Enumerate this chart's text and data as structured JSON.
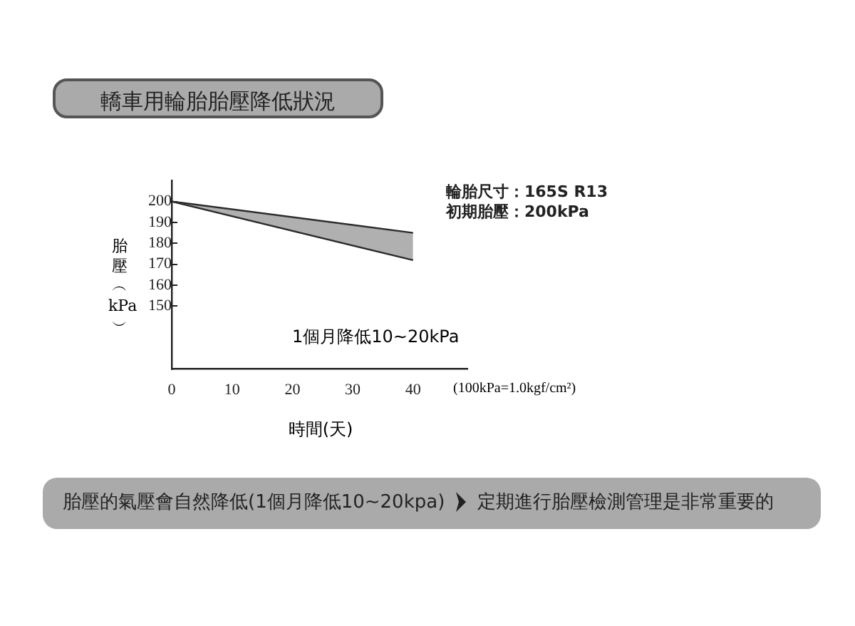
{
  "chart_data": {
    "type": "line",
    "title": "轎車用輪胎胎壓降低狀況",
    "xlabel": "時間(天)",
    "ylabel": "胎壓︵kPa︶",
    "x": [
      0,
      40
    ],
    "series": [
      {
        "color": "#222222",
        "values": [
          200,
          185
        ]
      },
      {
        "color": "#222222",
        "values": [
          200,
          172
        ],
        "lower": [
          200,
          172
        ],
        "upper": [
          200,
          185
        ]
      }
    ],
    "xlim": [
      0,
      49
    ],
    "xticks": [
      0,
      10,
      20,
      30,
      40
    ],
    "ylim": [
      120,
      210
    ],
    "yticks": [
      150,
      160,
      170,
      180,
      190,
      200
    ],
    "grid": false,
    "legend": false,
    "marker": "none",
    "line_style": "solid",
    "annotations": [
      "1個月降低10~20kPa",
      "輪胎尺寸：165S R13",
      "初期胎壓：200kPa",
      "(100kPa=1.0kgf/cm²)",
      "胎壓的氣壓會自然降低(1個月降低10~20kpa)",
      "定期進行胎壓檢測管理是非常重要的"
    ]
  }
}
